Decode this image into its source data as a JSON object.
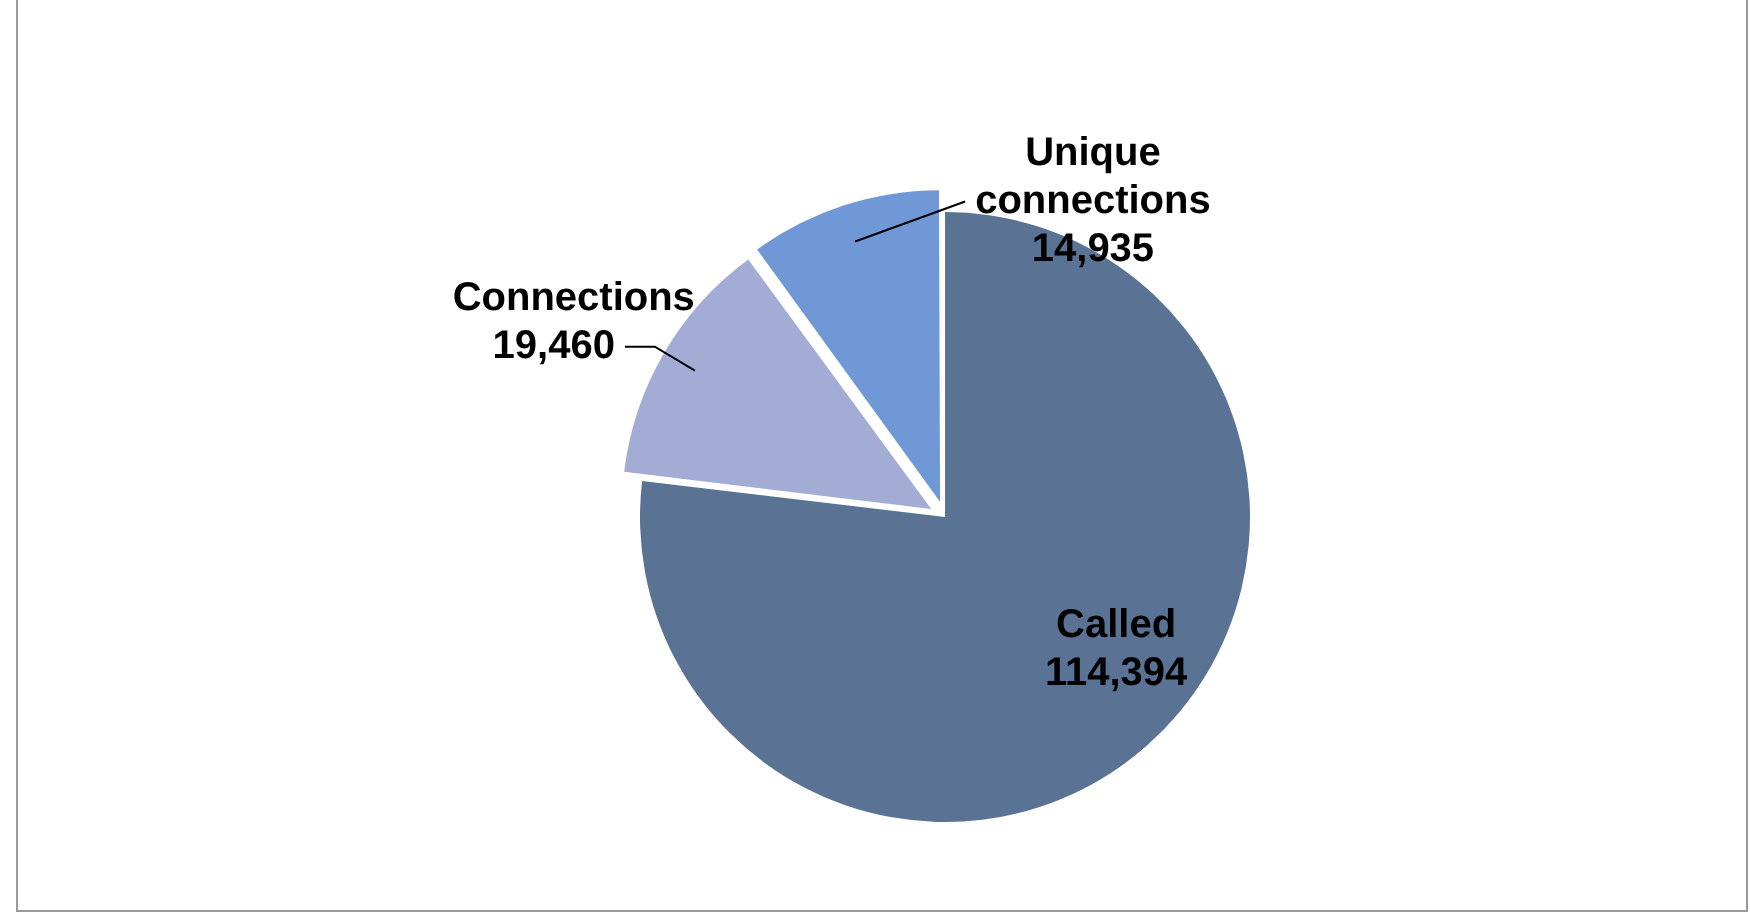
{
  "chart_data": {
    "type": "pie",
    "categories": [
      "Called",
      "Connections",
      "Unique connections"
    ],
    "values": [
      114394,
      19460,
      14935
    ],
    "colors": [
      "#5a7394",
      "#a2acd4",
      "#7098d6"
    ],
    "value_labels": [
      "114,394",
      "19,460",
      "14,935"
    ],
    "legend": false
  }
}
